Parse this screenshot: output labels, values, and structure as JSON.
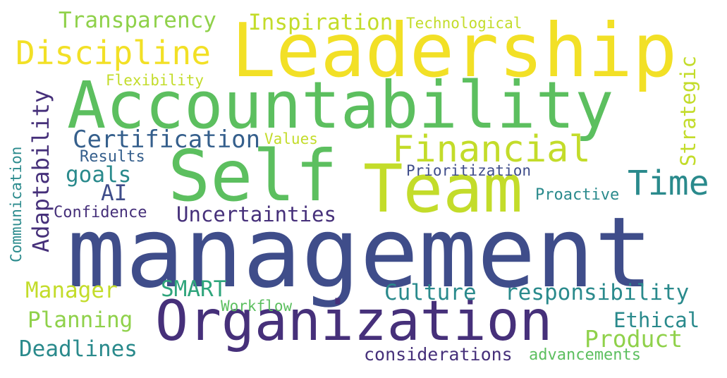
{
  "colors": {
    "background": "#ffffff",
    "dark_purple": "#46307a",
    "navy": "#3f4d8a",
    "blue": "#355f8c",
    "teal": "#2a8a8c",
    "green_teal": "#2fa57c",
    "green": "#5cbf5f",
    "light_green": "#8fd14a",
    "yellow_green": "#c3dc2a",
    "yellow": "#f2e026"
  },
  "words": [
    {
      "text": "management",
      "color": "#3f4d8a"
    },
    {
      "text": "Leadership",
      "color": "#f2e026"
    },
    {
      "text": "Accountability",
      "color": "#5cbf5f"
    },
    {
      "text": "Self",
      "color": "#5cbf5f"
    },
    {
      "text": "Team",
      "color": "#c3dc2a"
    },
    {
      "text": "Organization",
      "color": "#46307a"
    },
    {
      "text": "Discipline",
      "color": "#f2e026"
    },
    {
      "text": "Financial",
      "color": "#c3dc2a"
    },
    {
      "text": "Time",
      "color": "#2a8a8c"
    },
    {
      "text": "Certification",
      "color": "#355f8c"
    },
    {
      "text": "Transparency",
      "color": "#8fd14a"
    },
    {
      "text": "Inspiration",
      "color": "#c3dc2a"
    },
    {
      "text": "Technological",
      "color": "#c3dc2a"
    },
    {
      "text": "Flexibility",
      "color": "#c3dc2a"
    },
    {
      "text": "Values",
      "color": "#c3dc2a"
    },
    {
      "text": "Results",
      "color": "#355f8c"
    },
    {
      "text": "goals",
      "color": "#2a8a8c"
    },
    {
      "text": "AI",
      "color": "#3f4d8a"
    },
    {
      "text": "Confidence",
      "color": "#46307a"
    },
    {
      "text": "Uncertainties",
      "color": "#46307a"
    },
    {
      "text": "Prioritization",
      "color": "#3f4d8a"
    },
    {
      "text": "Proactive",
      "color": "#2a8a8c"
    },
    {
      "text": "Manager",
      "color": "#c3dc2a"
    },
    {
      "text": "SMART",
      "color": "#2fa57c"
    },
    {
      "text": "Culture",
      "color": "#2a8a8c"
    },
    {
      "text": "responsibility",
      "color": "#2a8a8c"
    },
    {
      "text": "Workflow",
      "color": "#5cbf5f"
    },
    {
      "text": "Planning",
      "color": "#8fd14a"
    },
    {
      "text": "Ethical",
      "color": "#2a8a8c"
    },
    {
      "text": "Product",
      "color": "#8fd14a"
    },
    {
      "text": "Deadlines",
      "color": "#2a8a8c"
    },
    {
      "text": "considerations",
      "color": "#46307a"
    },
    {
      "text": "advancements",
      "color": "#5cbf5f"
    },
    {
      "text": "Adaptability",
      "color": "#46307a"
    },
    {
      "text": "Communication",
      "color": "#2a8a8c"
    },
    {
      "text": "Strategic",
      "color": "#c3dc2a"
    }
  ]
}
